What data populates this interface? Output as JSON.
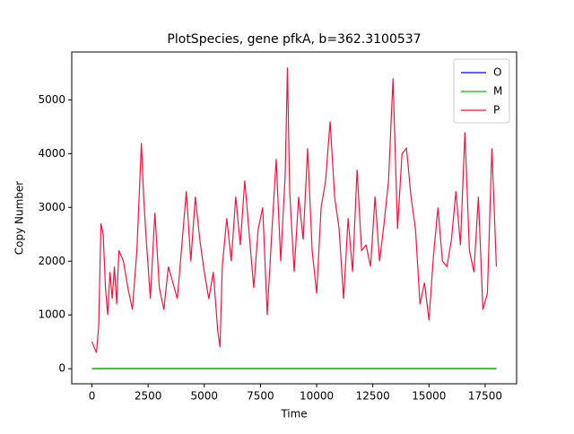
{
  "chart_data": {
    "type": "line",
    "title": "PlotSpecies, gene pfkA, b=362.3100537",
    "x_label": "Time",
    "y_label": "Copy Number",
    "x": [
      0,
      100,
      200,
      300,
      400,
      500,
      600,
      700,
      800,
      900,
      1000,
      1100,
      1200,
      1400,
      1600,
      1800,
      2000,
      2200,
      2300,
      2400,
      2600,
      2800,
      3000,
      3200,
      3400,
      3600,
      3800,
      4000,
      4200,
      4400,
      4600,
      4800,
      5000,
      5200,
      5400,
      5600,
      5700,
      5800,
      6000,
      6200,
      6400,
      6600,
      6800,
      7000,
      7200,
      7400,
      7600,
      7800,
      8000,
      8200,
      8400,
      8600,
      8700,
      8800,
      9000,
      9200,
      9400,
      9600,
      9800,
      10000,
      10200,
      10400,
      10600,
      10800,
      11000,
      11200,
      11400,
      11600,
      11800,
      12000,
      12200,
      12400,
      12600,
      12800,
      13000,
      13200,
      13400,
      13600,
      13800,
      14000,
      14200,
      14400,
      14600,
      14800,
      15000,
      15200,
      15400,
      15600,
      15800,
      16000,
      16200,
      16400,
      16600,
      16800,
      17000,
      17200,
      17400,
      17600,
      17800,
      18000
    ],
    "series": [
      {
        "name": "O",
        "color": "#0000ff",
        "values": [
          0,
          0,
          0,
          0,
          0,
          0,
          0,
          0,
          0,
          0,
          0,
          0,
          0,
          0,
          0,
          0,
          0,
          0,
          0,
          0,
          0,
          0,
          0,
          0,
          0,
          0,
          0,
          0,
          0,
          0,
          0,
          0,
          0,
          0,
          0,
          0,
          0,
          0,
          0,
          0,
          0,
          0,
          0,
          0,
          0,
          0,
          0,
          0,
          0,
          0,
          0,
          0,
          0,
          0,
          0,
          0,
          0,
          0,
          0,
          0,
          0,
          0,
          0,
          0,
          0,
          0,
          0,
          0,
          0,
          0,
          0,
          0,
          0,
          0,
          0,
          0,
          0,
          0,
          0,
          0,
          0,
          0,
          0,
          0,
          0,
          0,
          0,
          0,
          0,
          0,
          0,
          0,
          0,
          0,
          0,
          0,
          0,
          0,
          0,
          0
        ]
      },
      {
        "name": "M",
        "color": "#00c000",
        "values": [
          0,
          5,
          5,
          5,
          5,
          5,
          5,
          5,
          5,
          5,
          5,
          5,
          5,
          5,
          5,
          5,
          5,
          5,
          5,
          5,
          5,
          5,
          5,
          5,
          5,
          5,
          5,
          5,
          5,
          5,
          5,
          5,
          5,
          5,
          5,
          5,
          5,
          5,
          5,
          5,
          5,
          5,
          5,
          5,
          5,
          5,
          5,
          5,
          5,
          5,
          5,
          5,
          5,
          5,
          5,
          5,
          5,
          5,
          5,
          5,
          5,
          5,
          5,
          5,
          5,
          5,
          5,
          5,
          5,
          5,
          5,
          5,
          5,
          5,
          5,
          5,
          5,
          5,
          5,
          5,
          5,
          5,
          5,
          5,
          5,
          5,
          5,
          5,
          5,
          5,
          5,
          5,
          5,
          5,
          5,
          5,
          5,
          5,
          5,
          5
        ]
      },
      {
        "name": "P",
        "color": "#ff0f3c",
        "values": [
          500,
          400,
          300,
          800,
          2700,
          2500,
          1500,
          1000,
          1800,
          1300,
          1900,
          1200,
          2200,
          2000,
          1500,
          1100,
          2200,
          4200,
          3200,
          2500,
          1300,
          2900,
          1500,
          1100,
          1900,
          1600,
          1300,
          2300,
          3300,
          2000,
          3200,
          2400,
          1800,
          1300,
          1800,
          700,
          400,
          1900,
          2800,
          2000,
          3200,
          2300,
          3500,
          2500,
          1500,
          2600,
          3000,
          1000,
          2500,
          3900,
          2000,
          3600,
          5600,
          3300,
          1800,
          3200,
          2400,
          4100,
          2200,
          1400,
          3000,
          3500,
          4600,
          3200,
          2600,
          1300,
          2800,
          1800,
          3700,
          2200,
          2300,
          1900,
          3200,
          2000,
          2700,
          3500,
          5400,
          2600,
          4000,
          4100,
          3200,
          2600,
          1200,
          1600,
          900,
          2100,
          3000,
          2000,
          1900,
          2400,
          3300,
          2300,
          4400,
          2200,
          1800,
          3200,
          1100,
          1400,
          4100,
          1900
        ]
      }
    ],
    "xlim": [
      -900,
      18900
    ],
    "ylim": [
      -280,
      5890
    ],
    "xticks": [
      0,
      2500,
      5000,
      7500,
      10000,
      12500,
      15000,
      17500
    ],
    "yticks": [
      0,
      1000,
      2000,
      3000,
      4000,
      5000
    ],
    "legend": "upper right"
  }
}
